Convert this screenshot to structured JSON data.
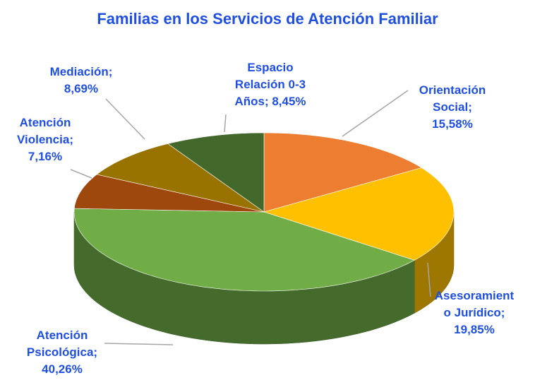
{
  "chart_data": {
    "type": "pie",
    "title": "Familias en los Servicios de Atención Familiar",
    "categories": [
      "Orientación Social",
      "Asesoramiento Jurídico",
      "Atención Psicológica",
      "Atención Violencia",
      "Mediación",
      "Espacio Relación 0-3 Años"
    ],
    "values": [
      15.58,
      19.85,
      40.26,
      7.16,
      8.69,
      8.45
    ],
    "value_labels": [
      "15,58%",
      "19,85%",
      "40,26%",
      "7,16%",
      "8,69%",
      "8,45%"
    ],
    "separator": ";",
    "colors": [
      "#ED7D31",
      "#FFC000",
      "#70AD47",
      "#9E480E",
      "#997300",
      "#43682B"
    ]
  }
}
